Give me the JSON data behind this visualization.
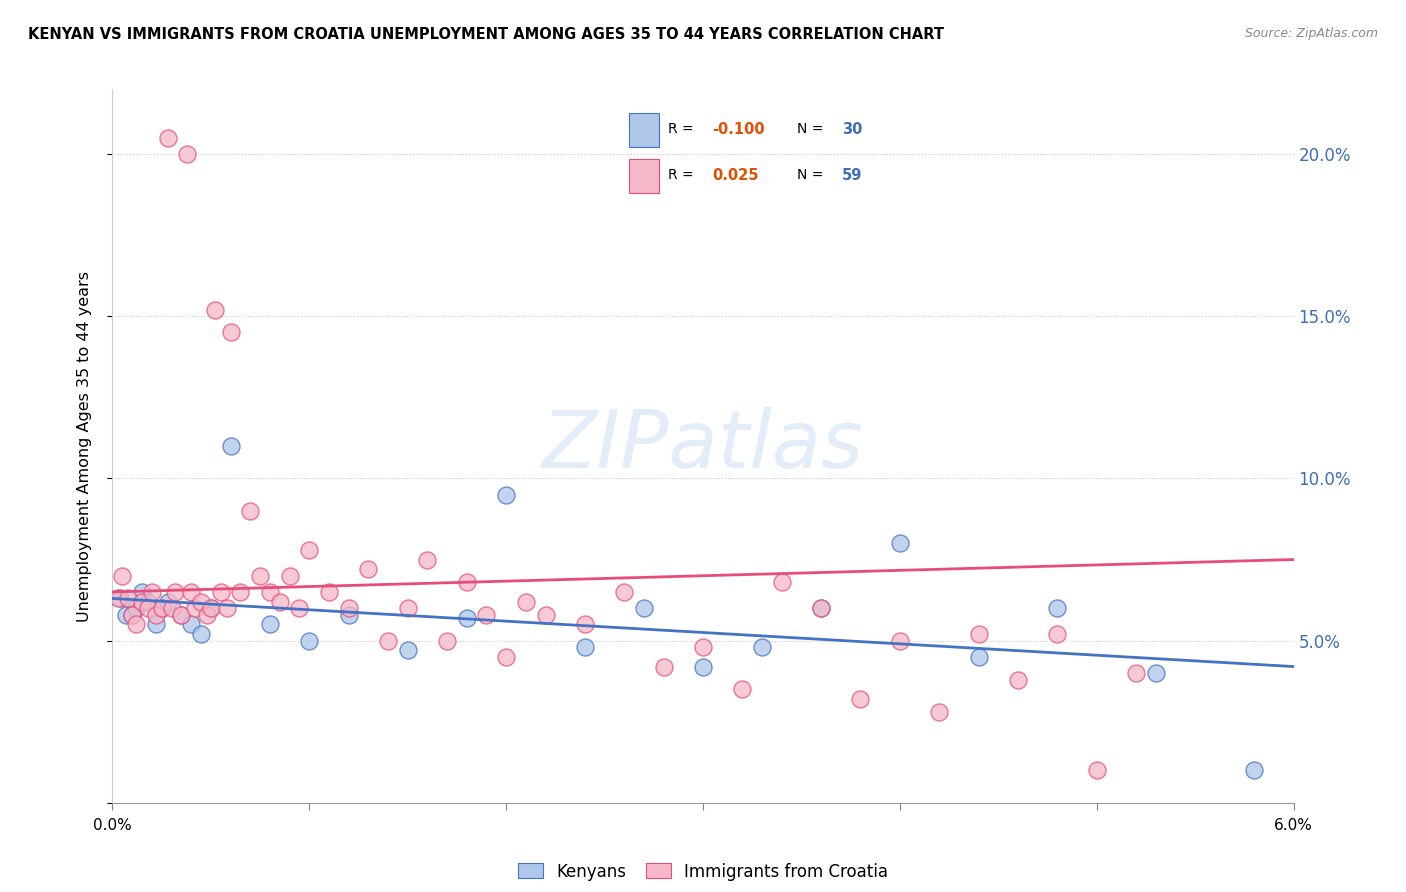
{
  "title": "KENYAN VS IMMIGRANTS FROM CROATIA UNEMPLOYMENT AMONG AGES 35 TO 44 YEARS CORRELATION CHART",
  "source": "Source: ZipAtlas.com",
  "ylabel": "Unemployment Among Ages 35 to 44 years",
  "legend_label1": "Kenyans",
  "legend_label2": "Immigrants from Croatia",
  "R1": -0.1,
  "N1": 30,
  "R2": 0.025,
  "N2": 59,
  "color_blue": "#aec6e8",
  "color_pink": "#f5b8c8",
  "color_blue_line": "#4472c4",
  "color_pink_line": "#e84d7a",
  "xlim": [
    0.0,
    0.06
  ],
  "ylim": [
    0.0,
    0.22
  ],
  "blue_x": [
    0.0004,
    0.0007,
    0.001,
    0.0012,
    0.0015,
    0.0018,
    0.0022,
    0.0025,
    0.0028,
    0.0035,
    0.004,
    0.0045,
    0.005,
    0.006,
    0.008,
    0.01,
    0.012,
    0.015,
    0.018,
    0.02,
    0.024,
    0.027,
    0.03,
    0.033,
    0.036,
    0.04,
    0.044,
    0.048,
    0.053,
    0.058
  ],
  "blue_y": [
    0.063,
    0.058,
    0.058,
    0.06,
    0.065,
    0.062,
    0.055,
    0.06,
    0.062,
    0.058,
    0.055,
    0.052,
    0.06,
    0.11,
    0.055,
    0.05,
    0.058,
    0.047,
    0.057,
    0.095,
    0.048,
    0.06,
    0.042,
    0.048,
    0.06,
    0.08,
    0.045,
    0.06,
    0.04,
    0.01
  ],
  "pink_x": [
    0.0003,
    0.0005,
    0.0008,
    0.001,
    0.0012,
    0.0015,
    0.0018,
    0.002,
    0.0022,
    0.0025,
    0.0028,
    0.003,
    0.0032,
    0.0035,
    0.0038,
    0.004,
    0.0042,
    0.0045,
    0.0048,
    0.005,
    0.0052,
    0.0055,
    0.0058,
    0.006,
    0.0065,
    0.007,
    0.0075,
    0.008,
    0.0085,
    0.009,
    0.0095,
    0.01,
    0.011,
    0.012,
    0.013,
    0.014,
    0.015,
    0.016,
    0.017,
    0.018,
    0.019,
    0.02,
    0.021,
    0.022,
    0.024,
    0.026,
    0.028,
    0.03,
    0.032,
    0.034,
    0.036,
    0.038,
    0.04,
    0.042,
    0.044,
    0.046,
    0.048,
    0.05,
    0.052
  ],
  "pink_y": [
    0.063,
    0.07,
    0.063,
    0.058,
    0.055,
    0.062,
    0.06,
    0.065,
    0.058,
    0.06,
    0.205,
    0.06,
    0.065,
    0.058,
    0.2,
    0.065,
    0.06,
    0.062,
    0.058,
    0.06,
    0.152,
    0.065,
    0.06,
    0.145,
    0.065,
    0.09,
    0.07,
    0.065,
    0.062,
    0.07,
    0.06,
    0.078,
    0.065,
    0.06,
    0.072,
    0.05,
    0.06,
    0.075,
    0.05,
    0.068,
    0.058,
    0.045,
    0.062,
    0.058,
    0.055,
    0.065,
    0.042,
    0.048,
    0.035,
    0.068,
    0.06,
    0.032,
    0.05,
    0.028,
    0.052,
    0.038,
    0.052,
    0.01,
    0.04
  ],
  "blue_line_x": [
    0.0,
    0.06
  ],
  "blue_line_y": [
    0.063,
    0.042
  ],
  "pink_line_x": [
    0.0,
    0.06
  ],
  "pink_line_y": [
    0.065,
    0.075
  ]
}
